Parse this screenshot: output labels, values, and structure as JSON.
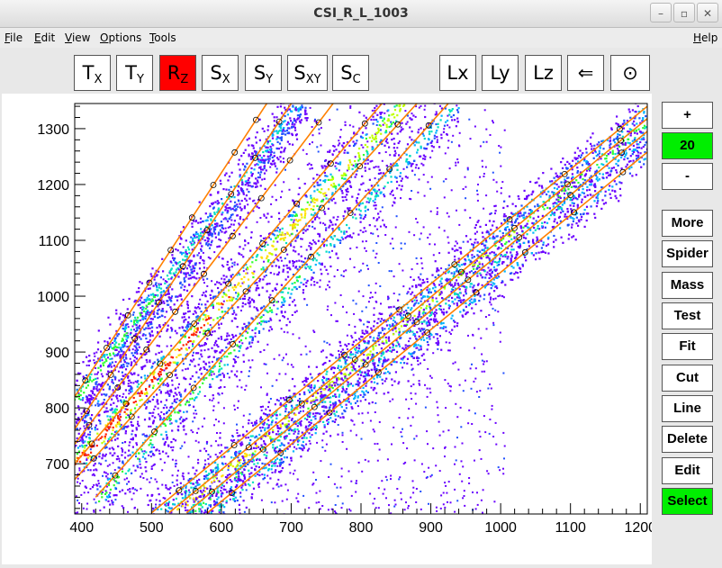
{
  "window": {
    "title": "CSI_R_L_1003"
  },
  "menus": [
    {
      "label": "File",
      "u": "F",
      "rest": "ile"
    },
    {
      "label": "Edit",
      "u": "E",
      "rest": "dit"
    },
    {
      "label": "View",
      "u": "V",
      "rest": "iew"
    },
    {
      "label": "Options",
      "u": "O",
      "rest": "ptions"
    },
    {
      "label": "Tools",
      "u": "T",
      "rest": "ools"
    }
  ],
  "help": {
    "u": "H",
    "rest": "elp"
  },
  "toolbar": {
    "tx": {
      "main": "T",
      "sub": "X"
    },
    "ty": {
      "main": "T",
      "sub": "Y"
    },
    "rz": {
      "main": "R",
      "sub": "Z"
    },
    "sx": {
      "main": "S",
      "sub": "X"
    },
    "sy": {
      "main": "S",
      "sub": "Y"
    },
    "sxy": {
      "main": "S",
      "sub": "XY"
    },
    "sc": {
      "main": "S",
      "sub": "C"
    },
    "lx": "Lx",
    "ly": "Ly",
    "lz": "Lz",
    "back": "⇐",
    "target": "⊙"
  },
  "side": {
    "plus": "+",
    "value": "20",
    "minus": "-",
    "more": "More",
    "spider": "Spider",
    "mass": "Mass",
    "test": "Test",
    "fit": "Fit",
    "cut": "Cut",
    "line": "Line",
    "delete": "Delete",
    "edit": "Edit",
    "select": "Select"
  },
  "colors": {
    "active": "#ff0000",
    "select": "#00ee00",
    "fitline": "#ff8000"
  },
  "chart_data": {
    "type": "heatmap",
    "title": "",
    "xlabel": "",
    "ylabel": "",
    "xlim": [
      390,
      1210
    ],
    "ylim": [
      610,
      1345
    ],
    "xticks": [
      400,
      500,
      600,
      700,
      800,
      900,
      1000,
      1100,
      1200
    ],
    "yticks": [
      700,
      800,
      900,
      1000,
      1100,
      1200,
      1300
    ],
    "x_tick_labels": [
      "400",
      "500",
      "600",
      "700",
      "800",
      "900",
      "1000",
      "1100",
      "1200"
    ],
    "y_tick_labels": [
      "700",
      "800",
      "900",
      "1000",
      "1100",
      "1200",
      "1300"
    ],
    "palette": [
      "#6a00ff",
      "#2050ff",
      "#00b4ff",
      "#00e0c0",
      "#30ff30",
      "#c0ff00",
      "#ffe000",
      "#ff2000"
    ],
    "bands": [
      {
        "x": [
          390,
          710
        ],
        "y": [
          815,
          1345
        ],
        "peak": 0.55,
        "width": 10
      },
      {
        "x": [
          390,
          720
        ],
        "y": [
          755,
          1345
        ],
        "peak": 0.25,
        "width": 8
      },
      {
        "x": [
          390,
          860
        ],
        "y": [
          700,
          1345
        ],
        "peak": 1.0,
        "width": 14
      },
      {
        "x": [
          420,
          935
        ],
        "y": [
          635,
          1345
        ],
        "peak": 0.6,
        "width": 11
      },
      {
        "x": [
          505,
          1210
        ],
        "y": [
          610,
          1340
        ],
        "peak": 0.45,
        "width": 10
      },
      {
        "x": [
          530,
          1210
        ],
        "y": [
          610,
          1315
        ],
        "peak": 0.8,
        "width": 12
      },
      {
        "x": [
          555,
          1210
        ],
        "y": [
          610,
          1290
        ],
        "peak": 0.5,
        "width": 10
      },
      {
        "x": [
          585,
          1210
        ],
        "y": [
          610,
          1255
        ],
        "peak": 0.4,
        "width": 9
      }
    ],
    "fit_lines": [
      {
        "x": [
          390,
          665
        ],
        "y": [
          820,
          1345
        ]
      },
      {
        "x": [
          390,
          700
        ],
        "y": [
          762,
          1345
        ]
      },
      {
        "x": [
          390,
          760
        ],
        "y": [
          735,
          1345
        ]
      },
      {
        "x": [
          390,
          830
        ],
        "y": [
          700,
          1345
        ]
      },
      {
        "x": [
          390,
          880
        ],
        "y": [
          672,
          1345
        ]
      },
      {
        "x": [
          420,
          925
        ],
        "y": [
          640,
          1345
        ]
      },
      {
        "x": [
          500,
          1210
        ],
        "y": [
          612,
          1340
        ]
      },
      {
        "x": [
          525,
          1210
        ],
        "y": [
          612,
          1318
        ]
      },
      {
        "x": [
          550,
          1210
        ],
        "y": [
          612,
          1295
        ]
      },
      {
        "x": [
          580,
          1210
        ],
        "y": [
          612,
          1258
        ]
      }
    ],
    "markers_per_line": 9
  }
}
